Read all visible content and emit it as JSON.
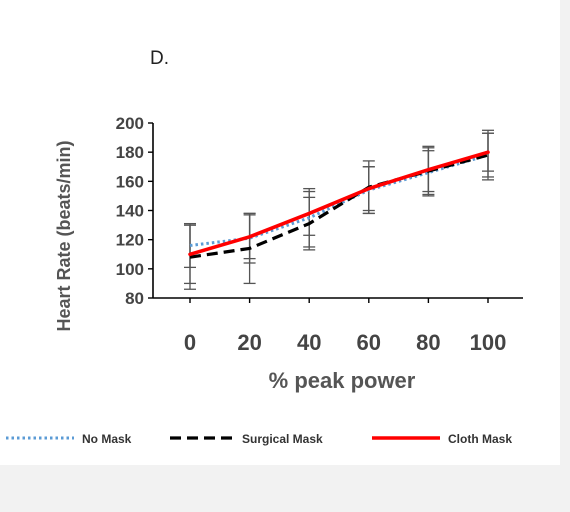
{
  "chart_data": {
    "type": "line",
    "panel_label": "D.",
    "xlabel": "% peak power",
    "ylabel": "Heart Rate (beats/min)",
    "x": [
      0,
      20,
      40,
      60,
      80,
      100
    ],
    "x_tick_labels": [
      "0",
      "20",
      "40",
      "60",
      "80",
      "100"
    ],
    "ylim": [
      80,
      200
    ],
    "y_ticks": [
      80,
      100,
      120,
      140,
      160,
      180,
      200
    ],
    "grid": false,
    "legend_position": "bottom",
    "series": [
      {
        "name": "No Mask",
        "color": "#5b9bd5",
        "style": "dotted",
        "values": [
          116,
          121,
          135,
          154,
          166,
          178
        ],
        "error": [
          15,
          17,
          20,
          16,
          15,
          15
        ]
      },
      {
        "name": "Surgical Mask",
        "color": "#000000",
        "style": "dashed",
        "values": [
          108,
          114,
          131,
          156,
          167,
          178
        ],
        "error": [
          22,
          24,
          18,
          18,
          17,
          17
        ]
      },
      {
        "name": "Cloth Mask",
        "color": "#ff0000",
        "style": "solid",
        "values": [
          110,
          122,
          138,
          155,
          168,
          180
        ],
        "error": [
          20,
          15,
          15,
          15,
          15,
          13
        ]
      }
    ]
  }
}
